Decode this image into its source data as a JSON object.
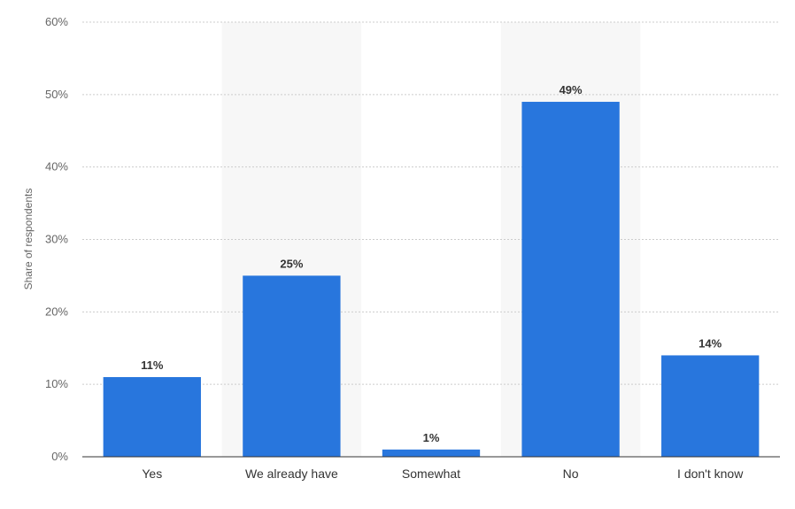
{
  "chart_data": {
    "type": "bar",
    "categories": [
      "Yes",
      "We already have",
      "Somewhat",
      "No",
      "I don't know"
    ],
    "values": [
      11,
      25,
      1,
      49,
      14
    ],
    "data_labels": [
      "11%",
      "25%",
      "1%",
      "49%",
      "14%"
    ],
    "title": "",
    "xlabel": "",
    "ylabel": "Share of respondents",
    "ylim": [
      0,
      60
    ],
    "y_ticks": [
      0,
      10,
      20,
      30,
      40,
      50,
      60
    ],
    "y_tick_labels": [
      "0%",
      "10%",
      "20%",
      "30%",
      "40%",
      "50%",
      "60%"
    ],
    "grid": true,
    "colors": {
      "bar": "#2876dd",
      "band": "#f7f7f7",
      "grid": "#cccccc",
      "axis": "#333333"
    }
  }
}
